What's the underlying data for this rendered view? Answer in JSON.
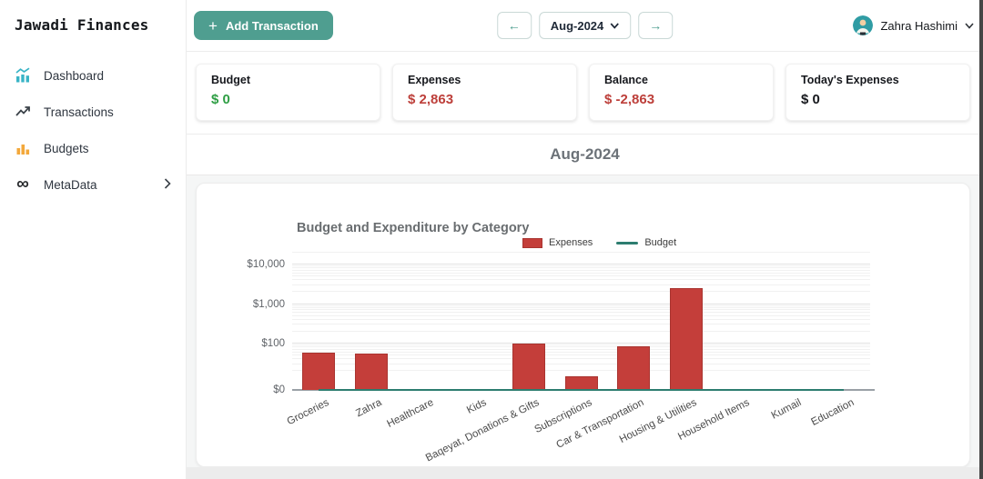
{
  "brand": {
    "title": "Jawadi Finances"
  },
  "sidebar": {
    "items": [
      {
        "label": "Dashboard",
        "icon": "dashboard-chart-icon"
      },
      {
        "label": "Transactions",
        "icon": "trending-up-icon"
      },
      {
        "label": "Budgets",
        "icon": "budget-bars-icon"
      },
      {
        "label": "MetaData",
        "icon": "meta-infinity-icon",
        "has_submenu": true
      }
    ]
  },
  "topbar": {
    "add_icon": "+",
    "add_transaction_label": "Add Transaction",
    "prev_arrow": "←",
    "next_arrow": "→",
    "month_selector": "Aug-2024",
    "user_name": "Zahra Hashimi"
  },
  "summary_cards": [
    {
      "label": "Budget",
      "value": "$ 0",
      "value_color": "#2e9e44"
    },
    {
      "label": "Expenses",
      "value": "$ 2,863",
      "value_color": "#bd3f3a"
    },
    {
      "label": "Balance",
      "value": "$ -2,863",
      "value_color": "#bd3f3a"
    },
    {
      "label": "Today's Expenses",
      "value": "$ 0",
      "value_color": "#16181d"
    }
  ],
  "section": {
    "month_title": "Aug-2024"
  },
  "chart_data": {
    "type": "bar",
    "title": "Budget and Expenditure by Category",
    "categories": [
      "Groceries",
      "Zahra",
      "Healthcare",
      "Kids",
      "Baqeyat, Donations & Gifts",
      "Subscriptions",
      "Car & Transportation",
      "Housing & Utilities",
      "Household Items",
      "Kumail",
      "Education"
    ],
    "series": [
      {
        "name": "Expenses",
        "type": "bar",
        "color": "#c43e3a",
        "border_color": "#a93430",
        "values": [
          60,
          55,
          0,
          0,
          100,
          15,
          85,
          2548,
          0,
          0,
          0
        ]
      },
      {
        "name": "Budget",
        "type": "line",
        "color": "#2d7d70",
        "values": [
          0,
          0,
          0,
          0,
          0,
          0,
          0,
          0,
          0,
          0,
          0
        ]
      }
    ],
    "legend": [
      {
        "label": "Expenses",
        "swatch": "bar-swatch"
      },
      {
        "label": "Budget",
        "swatch": "line-swatch"
      }
    ],
    "y_axis": {
      "scale": "log",
      "ticks": [
        {
          "label": "$0",
          "value": 0
        },
        {
          "label": "$100",
          "value": 100
        },
        {
          "label": "$1,000",
          "value": 1000
        },
        {
          "label": "$10,000",
          "value": 10000
        }
      ],
      "ylim": [
        0,
        20000
      ]
    },
    "legend_position": "top",
    "grid": true
  },
  "colors": {
    "accent_teal": "#4f9e90",
    "bar_red": "#c43e3a",
    "budget_line_teal": "#2d7d70",
    "expense_text_red": "#bd3f3a",
    "budget_text_green": "#2e9e44"
  }
}
